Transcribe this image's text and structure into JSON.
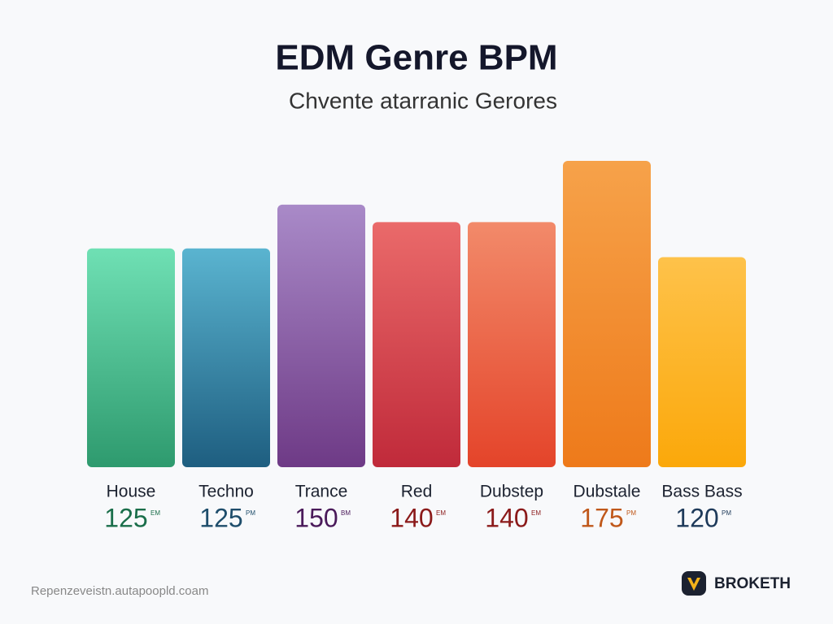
{
  "chart_data": {
    "type": "bar",
    "title": "EDM Genre BPM",
    "subtitle": "Chvente atarranic Gerores",
    "categories": [
      "House",
      "Techno",
      "Trance",
      "Red",
      "Dubstep",
      "Dubstale",
      "Bass Bass"
    ],
    "values": [
      125,
      125,
      150,
      140,
      140,
      175,
      120
    ],
    "value_suffixes": [
      "EM",
      "PM",
      "BM",
      "EM",
      "EM",
      "PM",
      "PM"
    ],
    "colors": [
      [
        "#6fe0b4",
        "#2e9a6e"
      ],
      [
        "#5ab4d0",
        "#1e5e80"
      ],
      [
        "#a98ac8",
        "#6e3a86"
      ],
      [
        "#ea6a6a",
        "#c02a3a"
      ],
      [
        "#f28a6a",
        "#e4442a"
      ],
      [
        "#f6a24a",
        "#ee7a1a"
      ],
      [
        "#fec24a",
        "#fba80a"
      ]
    ],
    "label_colors": [
      "#1a6e4a",
      "#1e4d6b",
      "#4a1a5a",
      "#8b1a1a",
      "#8b1a1a",
      "#c0581a",
      "#1e3a5a"
    ],
    "footer": "Repenzeveistn.autapoopld.coam",
    "brand": "BROKETH"
  }
}
